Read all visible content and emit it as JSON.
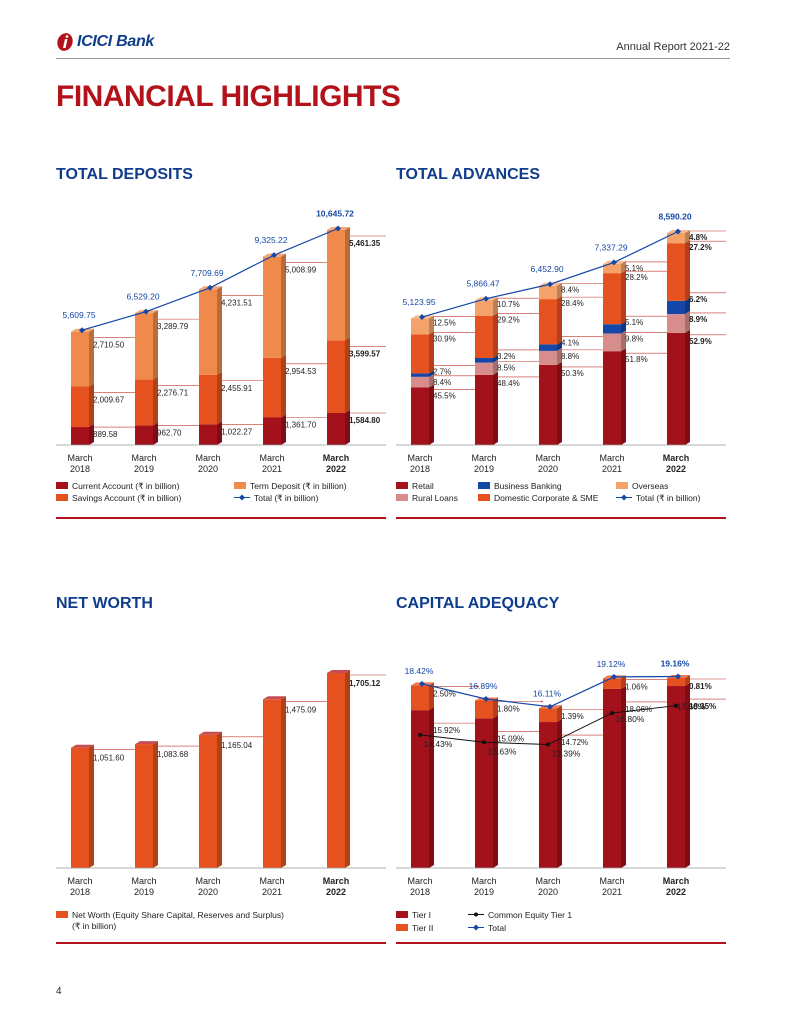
{
  "header": {
    "logo_text": "ICICI Bank",
    "report_title": "Annual Report 2021-22"
  },
  "page_title": "FINANCIAL HIGHLIGHTS",
  "page_number": "4",
  "colors": {
    "brand_red": "#b3121a",
    "brand_blue": "#0f3d8c",
    "dark_red": "#a3111b",
    "orange": "#e6521f",
    "light_orange": "#f08a4b",
    "pink": "#d88d8d",
    "blue": "#1447a8",
    "peach": "#f5a26a"
  },
  "years": [
    {
      "line1": "March",
      "line2": "2018"
    },
    {
      "line1": "March",
      "line2": "2019"
    },
    {
      "line1": "March",
      "line2": "2020"
    },
    {
      "line1": "March",
      "line2": "2021"
    },
    {
      "line1": "March",
      "line2": "2022"
    }
  ],
  "chart_data": [
    {
      "id": "deposits",
      "type": "bar",
      "stacked": true,
      "title": "TOTAL DEPOSITS",
      "categories": [
        "March 2018",
        "March 2019",
        "March 2020",
        "March 2021",
        "March 2022"
      ],
      "series": [
        {
          "name": "Current Account (₹ in billion)",
          "color": "#a3111b",
          "values": [
            889.58,
            962.7,
            1022.27,
            1361.7,
            1584.8
          ],
          "labels": [
            "889.58",
            "962.70",
            "1,022.27",
            "1,361.70",
            "1,584.80"
          ]
        },
        {
          "name": "Savings Account (₹ in billion)",
          "color": "#e6521f",
          "values": [
            2009.67,
            2276.71,
            2455.91,
            2954.53,
            3599.57
          ],
          "labels": [
            "2,009.67",
            "2,276.71",
            "2,455.91",
            "2,954.53",
            "3,599.57"
          ]
        },
        {
          "name": "Term Deposit (₹ in billion)",
          "color": "#f08a4b",
          "values": [
            2710.5,
            3289.79,
            4231.51,
            5008.99,
            5461.35
          ],
          "labels": [
            "2,710.50",
            "3,289.79",
            "4,231.51",
            "5,008.99",
            "5,461.35"
          ]
        }
      ],
      "total": {
        "name": "Total (₹ in billion)",
        "values": [
          5609.75,
          6529.2,
          7709.69,
          9325.22,
          10645.72
        ],
        "labels": [
          "5,609.75",
          "6,529.20",
          "7,709.69",
          "9,325.22",
          "10,645.72"
        ]
      },
      "ylim": [
        0,
        11000
      ]
    },
    {
      "id": "advances",
      "type": "bar",
      "stacked": true,
      "title": "TOTAL ADVANCES",
      "categories": [
        "March 2018",
        "March 2019",
        "March 2020",
        "March 2021",
        "March 2022"
      ],
      "series": [
        {
          "name": "Retail",
          "color": "#a3111b",
          "values": [
            45.5,
            48.4,
            50.3,
            51.8,
            52.9
          ],
          "labels": [
            "45.5%",
            "48.4%",
            "50.3%",
            "51.8%",
            "52.9%"
          ]
        },
        {
          "name": "Rural Loans",
          "color": "#d88d8d",
          "values": [
            8.4,
            8.5,
            8.8,
            9.8,
            8.9
          ],
          "labels": [
            "8.4%",
            "8.5%",
            "8.8%",
            "9.8%",
            "8.9%"
          ]
        },
        {
          "name": "Business Banking",
          "color": "#1447a8",
          "values": [
            2.7,
            3.2,
            4.1,
            5.1,
            6.2
          ],
          "labels": [
            "2.7%",
            "3.2%",
            "4.1%",
            "5.1%",
            "6.2%"
          ]
        },
        {
          "name": "Domestic Corporate & SME",
          "color": "#e6521f",
          "values": [
            30.9,
            29.2,
            28.4,
            28.2,
            27.2
          ],
          "labels": [
            "30.9%",
            "29.2%",
            "28.4%",
            "28.2%",
            "27.2%"
          ]
        },
        {
          "name": "Overseas",
          "color": "#f5a26a",
          "values": [
            12.5,
            10.7,
            8.4,
            5.1,
            4.8
          ],
          "labels": [
            "12.5%",
            "10.7%",
            "8.4%",
            "5.1%",
            "4.8%"
          ]
        }
      ],
      "total": {
        "name": "Total (₹ in billion)",
        "values": [
          5123.95,
          5866.47,
          6452.9,
          7337.29,
          8590.2
        ],
        "labels": [
          "5,123.95",
          "5,866.47",
          "6,452.90",
          "7,337.29",
          "8,590.20"
        ]
      },
      "ylim": [
        0,
        9000
      ]
    },
    {
      "id": "networth",
      "type": "bar",
      "title": "NET WORTH",
      "categories": [
        "March 2018",
        "March 2019",
        "March 2020",
        "March 2021",
        "March 2022"
      ],
      "series": [
        {
          "name": "Net Worth (Equity Share Capital, Reserves and Surplus)",
          "name_line2": "(₹ in billion)",
          "color": "#e6521f",
          "values": [
            1051.6,
            1083.68,
            1165.04,
            1475.09,
            1705.12
          ],
          "labels": [
            "1,051.60",
            "1,083.68",
            "1,165.04",
            "1,475.09",
            "1,705.12"
          ]
        }
      ],
      "ylim": [
        0,
        1750
      ]
    },
    {
      "id": "capital",
      "type": "bar",
      "stacked": true,
      "title": "CAPITAL ADEQUACY",
      "categories": [
        "March 2018",
        "March 2019",
        "March 2020",
        "March 2021",
        "March 2022"
      ],
      "series": [
        {
          "name": "Tier I",
          "color": "#a3111b",
          "values": [
            15.92,
            15.09,
            14.72,
            18.06,
            18.35
          ],
          "labels": [
            "15.92%",
            "15.09%",
            "14.72%",
            "18.06%",
            "18.35%"
          ]
        },
        {
          "name": "Tier II",
          "color": "#e6521f",
          "values": [
            2.5,
            1.8,
            1.39,
            1.06,
            0.81
          ],
          "labels": [
            "2.50%",
            "1.80%",
            "1.39%",
            "1.06%",
            "0.81%"
          ]
        }
      ],
      "cet1": {
        "name": "Common Equity Tier 1",
        "values": [
          14.43,
          13.63,
          13.39,
          16.8,
          17.6
        ],
        "labels": [
          "14.43%",
          "13.63%",
          "13.39%",
          "16.80%",
          "17.60%"
        ]
      },
      "total": {
        "name": "Total",
        "values": [
          18.42,
          16.89,
          16.11,
          19.12,
          19.16
        ],
        "labels": [
          "18.42%",
          "16.89%",
          "16.11%",
          "19.12%",
          "19.16%"
        ]
      },
      "ylim": [
        0,
        20
      ]
    }
  ]
}
